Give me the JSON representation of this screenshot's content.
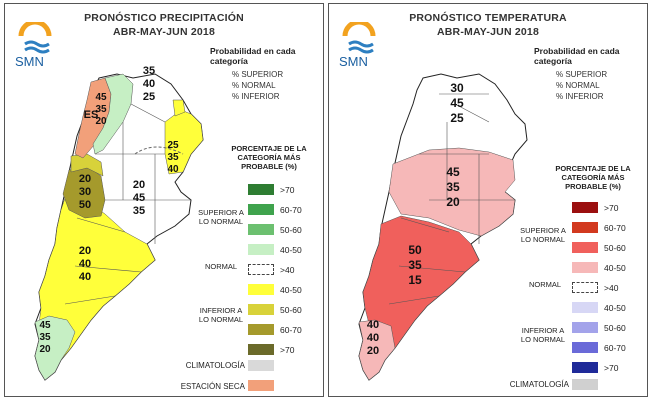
{
  "left": {
    "title_line1": "PRONÓSTICO PRECIPITACIÓN",
    "title_line2": "ABR-MAY-JUN 2018",
    "logo_text": "SMN",
    "prob_title": "Probabilidad en cada categoría",
    "prob_items": [
      "% SUPERIOR",
      "% NORMAL",
      "% INFERIOR"
    ],
    "pct_title": "PORCENTAJE DE LA CATEGORÍA MÁS PROBABLE (%)",
    "cat_superior": "SUPERIOR A LO NORMAL",
    "cat_normal": "NORMAL",
    "cat_inferior": "INFERIOR A LO NORMAL",
    "legend": [
      {
        "label": ">70",
        "color": "#2e7d32"
      },
      {
        "label": "60-70",
        "color": "#3fa34d"
      },
      {
        "label": "50-60",
        "color": "#6cc070"
      },
      {
        "label": "40-50",
        "color": "#c6efc4"
      },
      {
        "label": ">40",
        "color": "#ffffff",
        "dashed": true
      },
      {
        "label": "40-50",
        "color": "#ffff3a"
      },
      {
        "label": "50-60",
        "color": "#d8d23a"
      },
      {
        "label": "60-70",
        "color": "#a59a2c"
      },
      {
        "label": ">70",
        "color": "#6b6a2a"
      },
      {
        "label": "CLIMATOLOGÍA",
        "color": "#d9d9d9"
      },
      {
        "label": "ESTACIÓN SECA",
        "color": "#f2a07a"
      }
    ],
    "regions": [
      {
        "values": [
          "45",
          "35",
          "20"
        ]
      },
      {
        "values": [
          "ES"
        ]
      },
      {
        "values": [
          "35",
          "40",
          "25"
        ]
      },
      {
        "values": [
          "25",
          "35",
          "40"
        ]
      },
      {
        "values": [
          "20",
          "30",
          "50"
        ]
      },
      {
        "values": [
          "20",
          "45",
          "35"
        ]
      },
      {
        "values": [
          "20",
          "40",
          "40"
        ]
      },
      {
        "values": [
          "45",
          "35",
          "20"
        ]
      }
    ]
  },
  "right": {
    "title_line1": "PRONÓSTICO TEMPERATURA",
    "title_line2": "ABR-MAY-JUN 2018",
    "logo_text": "SMN",
    "prob_title": "Probabilidad en cada categoría",
    "prob_items": [
      "% SUPERIOR",
      "% NORMAL",
      "% INFERIOR"
    ],
    "pct_title": "PORCENTAJE DE LA CATEGORÍA MÁS PROBABLE (%)",
    "cat_superior": "SUPERIOR A LO NORMAL",
    "cat_normal": "NORMAL",
    "cat_inferior": "INFERIOR A LO NORMAL",
    "legend": [
      {
        "label": ">70",
        "color": "#9b0f0f"
      },
      {
        "label": "60-70",
        "color": "#d2391f"
      },
      {
        "label": "50-60",
        "color": "#f0605c"
      },
      {
        "label": "40-50",
        "color": "#f6b8b8"
      },
      {
        "label": ">40",
        "color": "#ffffff",
        "dashed": true
      },
      {
        "label": "40-50",
        "color": "#d7d7f5"
      },
      {
        "label": "50-60",
        "color": "#a3a3ea"
      },
      {
        "label": "60-70",
        "color": "#6a6ad8"
      },
      {
        "label": ">70",
        "color": "#1f2a99"
      },
      {
        "label": "CLIMATOLOGÍA",
        "color": "#d0d0d0"
      }
    ],
    "regions": [
      {
        "values": [
          "30",
          "45",
          "25"
        ]
      },
      {
        "values": [
          "45",
          "35",
          "20"
        ]
      },
      {
        "values": [
          "50",
          "35",
          "15"
        ]
      },
      {
        "values": [
          "40",
          "40",
          "20"
        ]
      }
    ]
  }
}
